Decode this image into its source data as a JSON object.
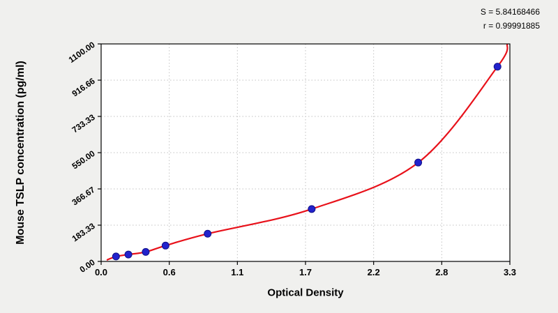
{
  "stats": {
    "s_text": "S = 5.84168466",
    "r_text": "r = 0.99991885"
  },
  "colors": {
    "page_bg": "#f0f0ee",
    "plot_bg": "#ffffff",
    "grid": "#c2c2c2",
    "axis": "#000000",
    "text": "#000000"
  },
  "chart_data": {
    "type": "scatter",
    "title": "",
    "xlabel": "Optical Density",
    "ylabel": "Mouse TSLP concentration (pg/ml)",
    "xlim": [
      0,
      3.3
    ],
    "ylim": [
      0,
      1100
    ],
    "grid": true,
    "legend": "none",
    "fit_stats": {
      "S": 5.84168466,
      "r": 0.99991885
    },
    "x_tick_values": [
      0,
      0.55,
      1.1,
      1.65,
      2.2,
      2.75,
      3.3
    ],
    "x_tick_labels": [
      "0.0",
      "0.6",
      "1.1",
      "1.7",
      "2.2",
      "2.8",
      "3.3"
    ],
    "y_tick_values": [
      0,
      183.33,
      366.67,
      550.0,
      733.33,
      916.66,
      1100.0
    ],
    "y_tick_labels": [
      "0.00",
      "183.33",
      "366.67",
      "550.00",
      "733.33",
      "916.66",
      "1100.00"
    ],
    "series": [
      {
        "name": "fit-curve",
        "type": "line",
        "color": "#e8111a",
        "points": [
          [
            0.05,
            8
          ],
          [
            0.12,
            25
          ],
          [
            0.22,
            35
          ],
          [
            0.36,
            48
          ],
          [
            0.52,
            80
          ],
          [
            0.86,
            140
          ],
          [
            1.7,
            265
          ],
          [
            2.56,
            500
          ],
          [
            3.2,
            985
          ],
          [
            3.28,
            1100
          ]
        ]
      },
      {
        "name": "standards",
        "type": "scatter",
        "color": "#2222cc",
        "edge": "#101088",
        "points": [
          [
            0.12,
            25
          ],
          [
            0.22,
            35
          ],
          [
            0.36,
            48
          ],
          [
            0.52,
            80
          ],
          [
            0.86,
            140
          ],
          [
            1.7,
            265
          ],
          [
            2.56,
            500
          ],
          [
            3.2,
            985
          ]
        ]
      }
    ]
  }
}
